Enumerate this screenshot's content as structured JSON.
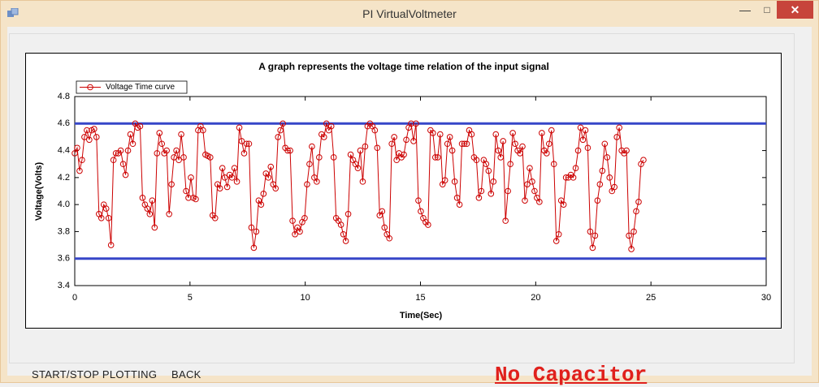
{
  "window": {
    "title": "PI VirtualVoltmeter"
  },
  "buttons": [
    "START/STOP PLOTTING",
    "BACK"
  ],
  "status_label": "No Capacitor",
  "chart_data": {
    "type": "line",
    "title": "A graph represents the voltage time relation of the input signal",
    "x_label": "Time(Sec)",
    "y_label": "Voltage(Volts)",
    "xlim": [
      0,
      30
    ],
    "xticks": [
      0,
      5,
      10,
      15,
      20,
      25,
      30
    ],
    "ylim": [
      3.4,
      4.8
    ],
    "yticks": [
      3.4,
      3.6,
      3.8,
      {
        "value": 4,
        "label": "4.0"
      },
      4.2,
      4.4,
      4.6,
      4.8
    ],
    "legend": "top-left",
    "marker": "circle",
    "reference_lines": {
      "values": [
        4.6,
        3.6
      ],
      "color": "#3646c8"
    },
    "x": [
      0,
      0.105,
      0.21,
      0.315,
      0.42,
      0.525,
      0.63,
      0.735,
      0.84,
      0.945,
      1.05,
      1.155,
      1.26,
      1.365,
      1.47,
      1.575,
      1.68,
      1.785,
      1.89,
      1.995,
      2.1,
      2.205,
      2.31,
      2.415,
      2.52,
      2.625,
      2.73,
      2.835,
      2.94,
      3.045,
      3.15,
      3.255,
      3.36,
      3.465,
      3.57,
      3.675,
      3.78,
      3.885,
      3.99,
      4.095,
      4.2,
      4.305,
      4.41,
      4.515,
      4.62,
      4.725,
      4.83,
      4.935,
      5.04,
      5.145,
      5.25,
      5.355,
      5.46,
      5.565,
      5.67,
      5.775,
      5.88,
      5.985,
      6.09,
      6.195,
      6.3,
      6.405,
      6.51,
      6.615,
      6.72,
      6.825,
      6.93,
      7.035,
      7.14,
      7.245,
      7.35,
      7.455,
      7.56,
      7.665,
      7.77,
      7.875,
      7.98,
      8.085,
      8.19,
      8.295,
      8.4,
      8.505,
      8.61,
      8.715,
      8.82,
      8.925,
      9.03,
      9.135,
      9.24,
      9.345,
      9.45,
      9.555,
      9.66,
      9.765,
      9.87,
      9.975,
      10.08,
      10.185,
      10.29,
      10.395,
      10.5,
      10.605,
      10.71,
      10.815,
      10.92,
      11.025,
      11.13,
      11.235,
      11.34,
      11.445,
      11.55,
      11.655,
      11.76,
      11.865,
      11.97,
      12.075,
      12.18,
      12.285,
      12.39,
      12.495,
      12.6,
      12.705,
      12.81,
      12.915,
      13.02,
      13.125,
      13.23,
      13.335,
      13.44,
      13.545,
      13.65,
      13.755,
      13.86,
      13.965,
      14.07,
      14.175,
      14.28,
      14.385,
      14.49,
      14.595,
      14.7,
      14.805,
      14.91,
      15.015,
      15.12,
      15.225,
      15.33,
      15.435,
      15.54,
      15.645,
      15.75,
      15.855,
      15.96,
      16.065,
      16.17,
      16.275,
      16.38,
      16.485,
      16.59,
      16.695,
      16.8,
      16.905,
      17.01,
      17.115,
      17.22,
      17.325,
      17.43,
      17.535,
      17.64,
      17.745,
      17.85,
      17.955,
      18.06,
      18.165,
      18.27,
      18.375,
      18.48,
      18.585,
      18.69,
      18.795,
      18.9,
      19.005,
      19.11,
      19.215,
      19.32,
      19.425,
      19.53,
      19.635,
      19.74,
      19.845,
      19.95,
      20.055,
      20.16,
      20.265,
      20.37,
      20.475,
      20.58,
      20.685,
      20.79,
      20.895,
      21,
      21.105,
      21.21,
      21.315,
      21.42,
      21.525,
      21.63,
      21.735,
      21.84,
      21.945,
      22.05,
      22.155,
      22.26,
      22.365,
      22.47,
      22.575,
      22.68,
      22.785,
      22.89,
      22.995,
      23.1,
      23.205,
      23.31,
      23.415,
      23.52,
      23.625,
      23.73,
      23.835,
      23.94,
      24.045,
      24.15,
      24.255,
      24.36,
      24.465,
      24.57,
      24.675
    ],
    "series": [
      {
        "name": "Voltage Time curve",
        "color": "#cc0000",
        "values": [
          4.38,
          4.42,
          4.25,
          4.33,
          4.5,
          4.55,
          4.48,
          4.55,
          4.56,
          4.5,
          3.93,
          3.9,
          4.0,
          3.97,
          3.9,
          3.7,
          4.33,
          4.38,
          4.38,
          4.4,
          4.3,
          4.22,
          4.4,
          4.52,
          4.45,
          4.6,
          4.57,
          4.58,
          4.05,
          4.0,
          3.97,
          3.93,
          4.03,
          3.83,
          4.38,
          4.53,
          4.45,
          4.38,
          4.4,
          3.93,
          4.15,
          4.35,
          4.4,
          4.33,
          4.52,
          4.35,
          4.1,
          4.05,
          4.2,
          4.05,
          4.04,
          4.55,
          4.58,
          4.55,
          4.37,
          4.36,
          4.35,
          3.92,
          3.9,
          4.15,
          4.12,
          4.27,
          4.2,
          4.13,
          4.22,
          4.2,
          4.27,
          4.17,
          4.57,
          4.47,
          4.38,
          4.45,
          4.45,
          3.83,
          3.68,
          3.8,
          4.03,
          4.0,
          4.08,
          4.23,
          4.2,
          4.28,
          4.15,
          4.12,
          4.5,
          4.55,
          4.6,
          4.42,
          4.4,
          4.4,
          3.88,
          3.78,
          3.83,
          3.8,
          3.87,
          3.9,
          4.15,
          4.3,
          4.43,
          4.2,
          4.17,
          4.35,
          4.52,
          4.5,
          4.6,
          4.55,
          4.58,
          4.35,
          3.9,
          3.88,
          3.85,
          3.78,
          3.73,
          3.93,
          4.37,
          4.33,
          4.3,
          4.27,
          4.4,
          4.17,
          4.43,
          4.58,
          4.6,
          4.58,
          4.55,
          4.42,
          3.92,
          3.95,
          3.83,
          3.78,
          3.75,
          4.45,
          4.5,
          4.33,
          4.38,
          4.35,
          4.37,
          4.48,
          4.57,
          4.6,
          4.47,
          4.6,
          4.03,
          3.95,
          3.9,
          3.87,
          3.85,
          4.55,
          4.53,
          4.35,
          4.35,
          4.52,
          4.15,
          4.18,
          4.45,
          4.5,
          4.4,
          4.17,
          4.05,
          4.0,
          4.45,
          4.45,
          4.45,
          4.55,
          4.52,
          4.35,
          4.33,
          4.05,
          4.1,
          4.33,
          4.3,
          4.25,
          4.08,
          4.17,
          4.52,
          4.4,
          4.35,
          4.47,
          3.88,
          4.1,
          4.3,
          4.53,
          4.45,
          4.4,
          4.38,
          4.43,
          4.03,
          4.15,
          4.27,
          4.17,
          4.1,
          4.05,
          4.02,
          4.53,
          4.4,
          4.38,
          4.45,
          4.55,
          4.3,
          3.73,
          3.78,
          4.03,
          4.0,
          4.2,
          4.2,
          4.22,
          4.2,
          4.27,
          4.4,
          4.57,
          4.48,
          4.55,
          4.42,
          3.8,
          3.68,
          3.77,
          4.03,
          4.15,
          4.25,
          4.45,
          4.35,
          4.2,
          4.1,
          4.13,
          4.5,
          4.57,
          4.4,
          4.38,
          4.4,
          3.77,
          3.67,
          3.8,
          3.95,
          4.02,
          4.3,
          4.33
        ]
      }
    ]
  }
}
